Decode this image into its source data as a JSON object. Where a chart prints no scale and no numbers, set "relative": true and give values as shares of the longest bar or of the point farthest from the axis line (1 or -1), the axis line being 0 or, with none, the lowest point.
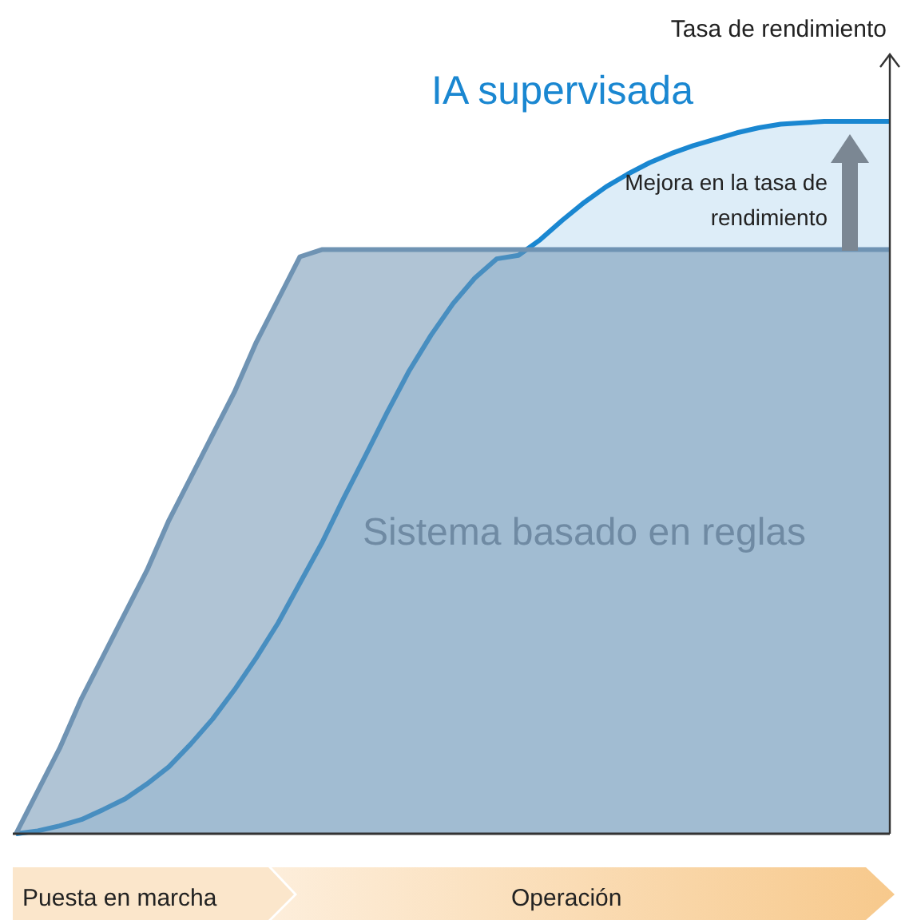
{
  "chart_data": {
    "type": "area",
    "relative": true,
    "ylabel": "Tasa de rendimiento",
    "categories": [
      null,
      null,
      null,
      null,
      null,
      null,
      null,
      null,
      null,
      null,
      null,
      null,
      null,
      null,
      null,
      null,
      null,
      null,
      null,
      null,
      null,
      null,
      null,
      null,
      null,
      null,
      null,
      null,
      null,
      null,
      null,
      null,
      null,
      null,
      null,
      null,
      null,
      null,
      null,
      null,
      null
    ],
    "series": [
      {
        "name": "IA supervisada",
        "color": "#1a87d1",
        "values": [
          0,
          0.004,
          0.011,
          0.02,
          0.034,
          0.049,
          0.07,
          0.094,
          0.126,
          0.161,
          0.202,
          0.247,
          0.296,
          0.352,
          0.408,
          0.471,
          0.531,
          0.592,
          0.65,
          0.7,
          0.744,
          0.78,
          0.807,
          0.812,
          0.834,
          0.861,
          0.886,
          0.908,
          0.926,
          0.942,
          0.955,
          0.966,
          0.975,
          0.984,
          0.991,
          0.996,
          0.998,
          1,
          1,
          1,
          1
        ]
      },
      {
        "name": "Sistema basado en reglas",
        "color": "#6f93b3",
        "values": [
          0,
          0.06,
          0.12,
          0.19,
          0.25,
          0.31,
          0.37,
          0.44,
          0.5,
          0.56,
          0.62,
          0.69,
          0.75,
          0.81,
          0.82,
          0.82,
          0.82,
          0.82,
          0.82,
          0.82,
          0.82,
          0.82,
          0.82,
          0.82,
          0.82,
          0.82,
          0.82,
          0.82,
          0.82,
          0.82,
          0.82,
          0.82,
          0.82,
          0.82,
          0.82,
          0.82,
          0.82,
          0.82,
          0.82,
          0.82,
          0.82
        ]
      }
    ],
    "annotations": [
      "Mejora en la tasa de rendimiento",
      "Puesta en marcha",
      "Operación"
    ]
  }
}
